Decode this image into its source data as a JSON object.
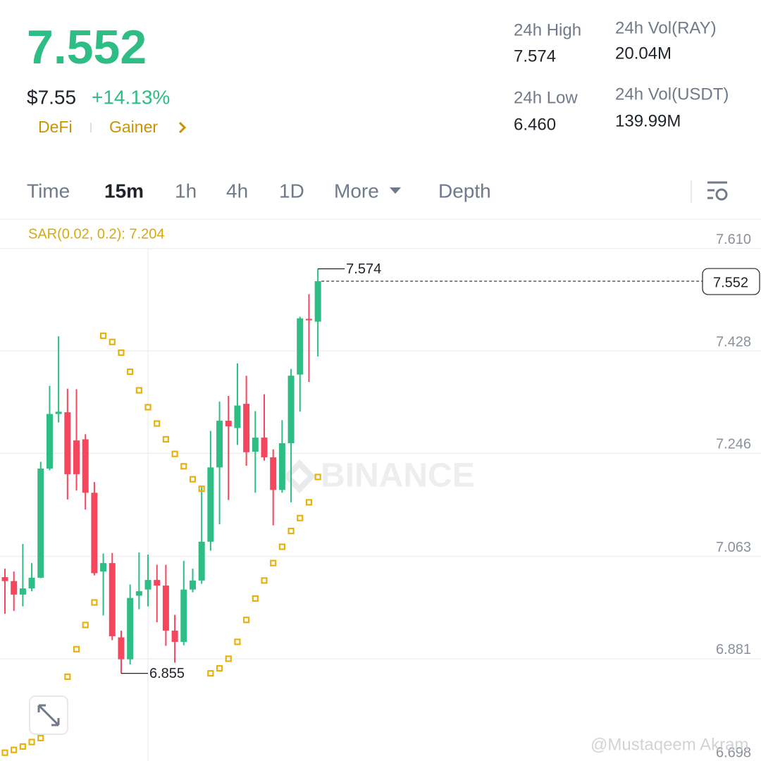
{
  "header": {
    "price": "7.552",
    "usd_price": "$7.55",
    "change": "+14.13%",
    "tags": [
      "DeFi",
      "Gainer"
    ],
    "stats": [
      {
        "label": "24h High",
        "value": "7.574"
      },
      {
        "label": "24h Low",
        "value": "6.460"
      },
      {
        "label": "24h Vol(RAY)",
        "value": "20.04M"
      },
      {
        "label": "24h Vol(USDT)",
        "value": "139.99M"
      }
    ]
  },
  "tabs": [
    {
      "label": "Time"
    },
    {
      "label": "15m",
      "active": true
    },
    {
      "label": "1h"
    },
    {
      "label": "4h"
    },
    {
      "label": "1D"
    },
    {
      "label": "More"
    },
    {
      "label": "Depth"
    }
  ],
  "chart_data": {
    "type": "candlestick",
    "indicator_label": "SAR(0.02, 0.2): 7.204",
    "up_color": "#2ebd85",
    "down_color": "#f6465d",
    "open": [
      7.026,
      7.019,
      6.995,
      7.006,
      7.025,
      7.219,
      7.316,
      7.319,
      7.269,
      7.271,
      7.176,
      7.036,
      7.051,
      6.919,
      6.88,
      6.993,
      7.004,
      7.021,
      7.011,
      6.931,
      6.911,
      7.004,
      7.02,
      7.089,
      7.221,
      7.304,
      7.291,
      7.334,
      7.249,
      7.274,
      7.239,
      7.181,
      7.264,
      7.386,
      7.485,
      7.48
    ],
    "high": [
      7.041,
      7.036,
      7.085,
      7.051,
      7.231,
      7.366,
      7.454,
      7.361,
      7.36,
      7.28,
      7.195,
      7.068,
      7.069,
      6.931,
      7.013,
      7.07,
      7.066,
      7.048,
      7.048,
      6.959,
      7.055,
      7.041,
      7.186,
      7.286,
      7.338,
      7.348,
      7.406,
      7.384,
      7.321,
      7.351,
      7.253,
      7.305,
      7.396,
      7.489,
      7.529,
      7.574
    ],
    "low": [
      6.961,
      6.966,
      6.974,
      7.001,
      7.024,
      7.216,
      7.301,
      7.164,
      7.18,
      7.146,
      7.029,
      6.958,
      6.914,
      6.855,
      6.871,
      6.969,
      6.974,
      6.946,
      6.904,
      6.874,
      6.905,
      6.999,
      7.014,
      7.073,
      7.12,
      7.163,
      7.261,
      7.224,
      7.176,
      7.233,
      7.118,
      7.176,
      7.159,
      7.32,
      7.373,
      7.418
    ],
    "close": [
      7.019,
      6.995,
      7.006,
      7.025,
      7.219,
      7.316,
      7.32,
      7.209,
      7.209,
      7.176,
      7.033,
      7.051,
      6.921,
      6.88,
      6.989,
      7.001,
      7.021,
      7.011,
      6.931,
      6.911,
      7.004,
      7.02,
      7.089,
      7.221,
      7.304,
      7.294,
      7.331,
      7.248,
      7.274,
      7.239,
      7.181,
      7.264,
      7.384,
      7.486,
      7.483,
      7.552
    ],
    "sar": {
      "color": "#e8b20e",
      "values": [
        6.714,
        6.719,
        6.725,
        6.733,
        6.74,
        6.781,
        6.798,
        6.849,
        6.898,
        6.941,
        6.981,
        7.455,
        7.444,
        7.425,
        7.391,
        7.358,
        7.328,
        7.299,
        7.271,
        7.245,
        7.223,
        7.2,
        7.183,
        6.855,
        6.864,
        6.881,
        6.911,
        6.95,
        6.988,
        7.02,
        7.051,
        7.08,
        7.108,
        7.131,
        7.159,
        7.204
      ]
    },
    "ylim": [
      6.698,
      7.661
    ],
    "yticks": [
      {
        "value": 7.61,
        "label": "7.610"
      },
      7.428,
      7.246,
      7.063,
      6.881,
      6.698
    ],
    "grid": true,
    "max_price": 7.574,
    "min_price": 6.855,
    "last_price": 7.552,
    "watermark": "BINANCE"
  },
  "credit": "@Mustaqeem Akram"
}
